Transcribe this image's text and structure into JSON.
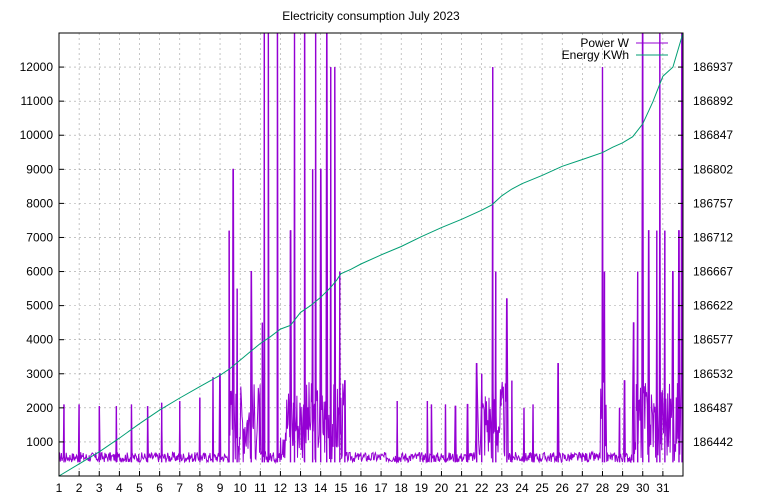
{
  "chart_data": {
    "type": "line",
    "title": "Electricity consumption July 2023",
    "xlabel": "",
    "ylabel": "",
    "xlim": [
      1,
      32
    ],
    "x_ticks": [
      "1",
      "2",
      "3",
      "4",
      "5",
      "6",
      "7",
      "8",
      "9",
      "10",
      "11",
      "12",
      "13",
      "14",
      "15",
      "16",
      "17",
      "18",
      "19",
      "20",
      "21",
      "22",
      "23",
      "24",
      "25",
      "26",
      "27",
      "28",
      "29",
      "30",
      "31"
    ],
    "ylim_left": [
      0,
      13000
    ],
    "y_ticks_left": [
      "1000",
      "2000",
      "3000",
      "4000",
      "5000",
      "6000",
      "7000",
      "8000",
      "9000",
      "10000",
      "11000",
      "12000"
    ],
    "ylim_right": [
      186397,
      186982
    ],
    "y_ticks_right": [
      "186442",
      "186487",
      "186532",
      "186577",
      "186622",
      "186667",
      "186712",
      "186757",
      "186802",
      "186847",
      "186892",
      "186937"
    ],
    "grid": true,
    "legend_position": "top-right",
    "series": [
      {
        "name": "Power W",
        "axis": "left",
        "color": "#9400d3",
        "baseline_low": 400,
        "baseline_high": 700,
        "peaks": [
          [
            1.25,
            2100
          ],
          [
            2.0,
            2100
          ],
          [
            3.0,
            2050
          ],
          [
            3.85,
            2050
          ],
          [
            4.6,
            2100
          ],
          [
            5.4,
            2050
          ],
          [
            6.1,
            2150
          ],
          [
            7.0,
            2200
          ],
          [
            8.0,
            2300
          ],
          [
            8.65,
            2900
          ],
          [
            9.0,
            3000
          ],
          [
            9.45,
            7200
          ],
          [
            9.65,
            9000
          ],
          [
            9.85,
            5500
          ],
          [
            10.55,
            6000
          ],
          [
            11.1,
            4500
          ],
          [
            11.2,
            13000
          ],
          [
            11.4,
            13000
          ],
          [
            11.85,
            13000
          ],
          [
            12.5,
            7200
          ],
          [
            12.7,
            13000
          ],
          [
            13.2,
            13000
          ],
          [
            13.6,
            9000
          ],
          [
            13.75,
            13000
          ],
          [
            14.0,
            9000
          ],
          [
            14.3,
            13000
          ],
          [
            14.5,
            12000
          ],
          [
            14.7,
            12000
          ],
          [
            14.95,
            6000
          ],
          [
            15.2,
            2800
          ],
          [
            17.8,
            2200
          ],
          [
            19.3,
            2200
          ],
          [
            19.5,
            2100
          ],
          [
            20.2,
            2100
          ],
          [
            20.7,
            2050
          ],
          [
            21.3,
            2100
          ],
          [
            21.75,
            3300
          ],
          [
            22.0,
            3000
          ],
          [
            22.55,
            12000
          ],
          [
            22.7,
            6000
          ],
          [
            23.25,
            5200
          ],
          [
            23.5,
            2800
          ],
          [
            24.1,
            2000
          ],
          [
            24.55,
            2100
          ],
          [
            25.8,
            3300
          ],
          [
            28.0,
            12000
          ],
          [
            28.1,
            6000
          ],
          [
            28.85,
            2000
          ],
          [
            29.1,
            2800
          ],
          [
            29.55,
            4500
          ],
          [
            29.75,
            6000
          ],
          [
            30.0,
            13000
          ],
          [
            30.3,
            7200
          ],
          [
            30.7,
            7200
          ],
          [
            30.85,
            13000
          ],
          [
            31.1,
            7200
          ],
          [
            31.5,
            6000
          ],
          [
            31.8,
            7200
          ],
          [
            31.95,
            13000
          ]
        ],
        "dense_ranges": [
          [
            9.45,
            11.0
          ],
          [
            12.0,
            15.2
          ],
          [
            21.7,
            23.3
          ],
          [
            27.9,
            28.2
          ],
          [
            29.5,
            32.0
          ]
        ]
      },
      {
        "name": "Energy KWh",
        "axis": "right",
        "color": "#009e73",
        "x": [
          1,
          2,
          3,
          4,
          5,
          6,
          7,
          8,
          9,
          9.5,
          10,
          10.5,
          11,
          11.5,
          12,
          12.5,
          13,
          13.5,
          14,
          14.5,
          14.8,
          15,
          15.5,
          16,
          17,
          18,
          19,
          20,
          21,
          22,
          22.5,
          23,
          23.5,
          24,
          25,
          26,
          27,
          28,
          28.5,
          29,
          29.5,
          30,
          30.5,
          31,
          31.5,
          32
        ],
        "values": [
          186397,
          186413,
          186429,
          186447,
          186466,
          186484,
          186500,
          186515,
          186530,
          186539,
          186550,
          186561,
          186572,
          186581,
          186591,
          186596,
          186613,
          186622,
          186633,
          186646,
          186656,
          186664,
          186670,
          186677,
          186689,
          186700,
          186713,
          186725,
          186736,
          186748,
          186755,
          186767,
          186776,
          186783,
          186794,
          186806,
          186815,
          186824,
          186831,
          186837,
          186845,
          186862,
          186891,
          186925,
          186937,
          186982
        ]
      }
    ]
  }
}
